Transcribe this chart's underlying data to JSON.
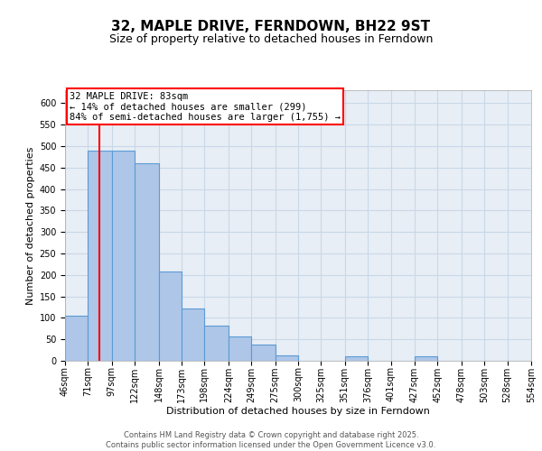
{
  "title_line1": "32, MAPLE DRIVE, FERNDOWN, BH22 9ST",
  "title_line2": "Size of property relative to detached houses in Ferndown",
  "xlabel": "Distribution of detached houses by size in Ferndown",
  "ylabel": "Number of detached properties",
  "footer_line1": "Contains HM Land Registry data © Crown copyright and database right 2025.",
  "footer_line2": "Contains public sector information licensed under the Open Government Licence v3.0.",
  "annotation_line1": "32 MAPLE DRIVE: 83sqm",
  "annotation_line2": "← 14% of detached houses are smaller (299)",
  "annotation_line3": "84% of semi-detached houses are larger (1,755) →",
  "bin_edges": [
    46,
    71,
    97,
    122,
    148,
    173,
    198,
    224,
    249,
    275,
    300,
    325,
    351,
    376,
    401,
    427,
    452,
    478,
    503,
    528,
    554
  ],
  "bin_labels": [
    "46sqm",
    "71sqm",
    "97sqm",
    "122sqm",
    "148sqm",
    "173sqm",
    "198sqm",
    "224sqm",
    "249sqm",
    "275sqm",
    "300sqm",
    "325sqm",
    "351sqm",
    "376sqm",
    "401sqm",
    "427sqm",
    "452sqm",
    "478sqm",
    "503sqm",
    "528sqm",
    "554sqm"
  ],
  "bar_heights": [
    105,
    490,
    490,
    460,
    207,
    122,
    82,
    57,
    38,
    13,
    0,
    0,
    10,
    0,
    0,
    10,
    0,
    0,
    0,
    0
  ],
  "bar_color": "#aec6e8",
  "bar_edgecolor": "#5b9bd5",
  "grid_color": "#c8d8e8",
  "background_color": "#e8eef5",
  "redline_x": 83,
  "ylim": [
    0,
    630
  ],
  "yticks": [
    0,
    50,
    100,
    150,
    200,
    250,
    300,
    350,
    400,
    450,
    500,
    550,
    600
  ],
  "annotation_box_edgecolor": "red",
  "redline_color": "red",
  "title1_fontsize": 11,
  "title2_fontsize": 9,
  "axis_label_fontsize": 8,
  "tick_fontsize": 7,
  "annotation_fontsize": 7.5,
  "footer_fontsize": 6
}
